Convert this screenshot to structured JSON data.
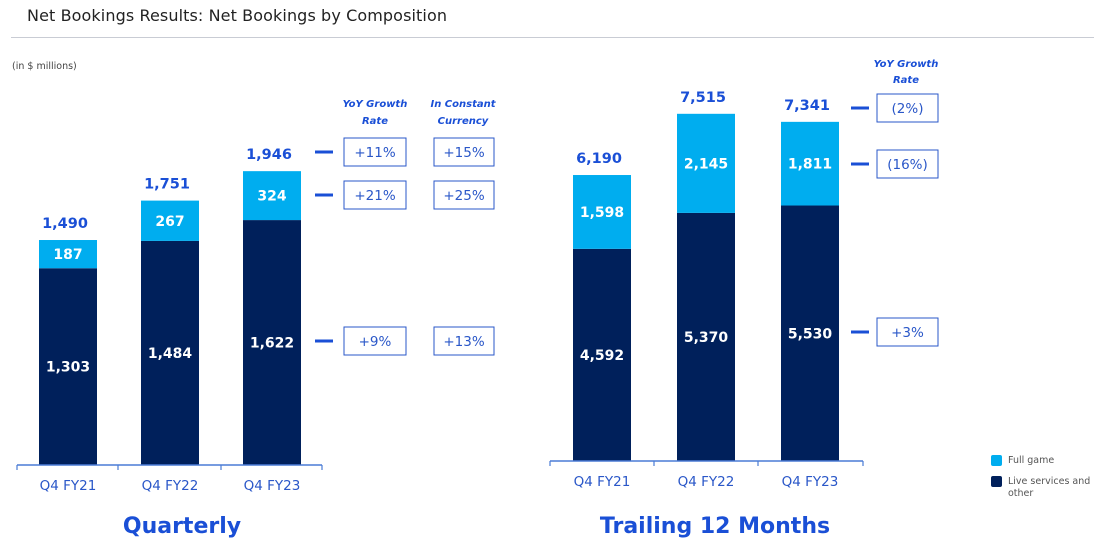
{
  "header": {
    "title": "Net Bookings Results: Net Bookings by Composition",
    "unit_note": "(in $ millions)"
  },
  "colors": {
    "full_game": "#00adef",
    "live_services": "#00205b",
    "accent": "#1a4fd6",
    "axis": "#4a7bd6"
  },
  "legend": [
    {
      "label": "Full game",
      "color": "#00adef"
    },
    {
      "label": "Live services and other",
      "color": "#00205b"
    }
  ],
  "chart_data": [
    {
      "type": "bar",
      "stacked": true,
      "title": "Quarterly",
      "categories": [
        "Q4 FY21",
        "Q4 FY22",
        "Q4 FY23"
      ],
      "series": [
        {
          "name": "Live services and other",
          "values": [
            1303,
            1484,
            1622
          ]
        },
        {
          "name": "Full game",
          "values": [
            187,
            267,
            324
          ]
        }
      ],
      "totals": [
        1490,
        1751,
        1946
      ],
      "growth_headers": [
        "YoY Growth Rate",
        "In Constant Currency"
      ],
      "growth": [
        {
          "row": "Total",
          "yoy": "+11%",
          "constant_currency": "+15%"
        },
        {
          "row": "Full game",
          "yoy": "+21%",
          "constant_currency": "+25%"
        },
        {
          "row": "Live services and other",
          "yoy": "+9%",
          "constant_currency": "+13%"
        }
      ],
      "ylim": [
        0,
        2000
      ]
    },
    {
      "type": "bar",
      "stacked": true,
      "title": "Trailing 12 Months",
      "categories": [
        "Q4 FY21",
        "Q4 FY22",
        "Q4 FY23"
      ],
      "series": [
        {
          "name": "Live services and other",
          "values": [
            4592,
            5370,
            5530
          ]
        },
        {
          "name": "Full game",
          "values": [
            1598,
            2145,
            1811
          ]
        }
      ],
      "totals": [
        6190,
        7515,
        7341
      ],
      "growth_headers": [
        "YoY Growth Rate"
      ],
      "growth": [
        {
          "row": "Total",
          "yoy": "(2%)"
        },
        {
          "row": "Full game",
          "yoy": "(16%)"
        },
        {
          "row": "Live services and other",
          "yoy": "+3%"
        }
      ],
      "ylim": [
        0,
        8000
      ]
    }
  ]
}
